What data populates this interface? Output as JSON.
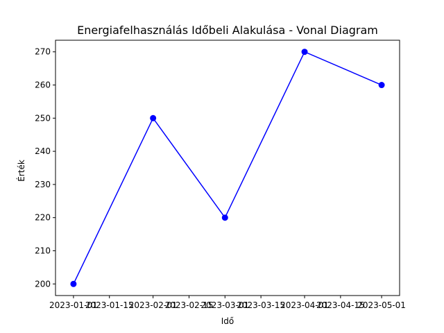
{
  "chart_data": {
    "type": "line",
    "title": "Energiafelhasználás Időbeli Alakulása - Vonal Diagram",
    "xlabel": "Idő",
    "ylabel": "Érték",
    "x": [
      "2023-01-01",
      "2023-02-01",
      "2023-03-01",
      "2023-04-01",
      "2023-05-01"
    ],
    "series": [
      {
        "values": [
          200,
          250,
          220,
          270,
          260
        ],
        "color": "#0000ff",
        "marker": "circle"
      }
    ],
    "x_ticks": [
      "2023-01-01",
      "2023-01-15",
      "2023-02-01",
      "2023-02-15",
      "2023-03-01",
      "2023-03-15",
      "2023-04-01",
      "2023-04-15",
      "2023-05-01"
    ],
    "y_ticks": [
      200,
      210,
      220,
      230,
      240,
      250,
      260,
      270
    ],
    "xlim": [
      "2022-12-25",
      "2023-05-08"
    ],
    "ylim": [
      196.5,
      273.5
    ],
    "grid": false,
    "legend": "none"
  }
}
